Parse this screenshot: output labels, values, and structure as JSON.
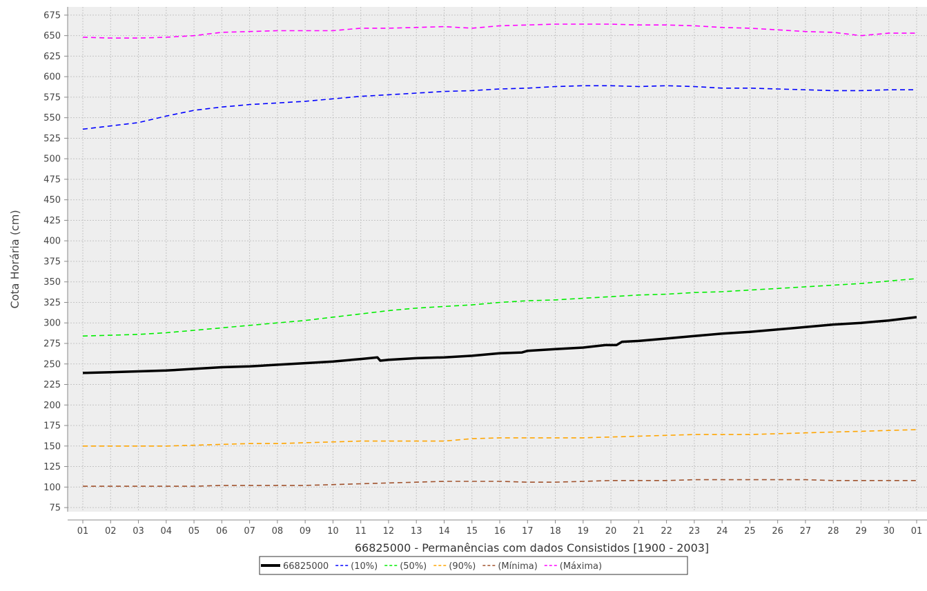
{
  "chart_data": {
    "type": "line",
    "title": "",
    "xlabel": "66825000 - Permanências com dados Consistidos [1900 - 2003]",
    "ylabel": "Cota Horária (cm)",
    "ylim": [
      70,
      685
    ],
    "y_ticks": [
      75,
      100,
      125,
      150,
      175,
      200,
      225,
      250,
      275,
      300,
      325,
      350,
      375,
      400,
      425,
      450,
      475,
      500,
      525,
      550,
      575,
      600,
      625,
      650,
      675
    ],
    "x_ticks": [
      "01",
      "02",
      "03",
      "04",
      "05",
      "06",
      "07",
      "08",
      "09",
      "10",
      "11",
      "12",
      "13",
      "14",
      "15",
      "16",
      "17",
      "18",
      "19",
      "20",
      "21",
      "22",
      "23",
      "24",
      "25",
      "26",
      "27",
      "28",
      "29",
      "30",
      "01"
    ],
    "x_start_index": 1,
    "grid": true,
    "legend_position": "bottom",
    "series": [
      {
        "name": "66825000",
        "color": "#000000",
        "style": "solid",
        "x": [
          1,
          2,
          3,
          4,
          5,
          6,
          7,
          8,
          9,
          10,
          11,
          11.6,
          11.7,
          12,
          13,
          14,
          15,
          16,
          16.8,
          17,
          18,
          19,
          19.8,
          20.2,
          20.4,
          21,
          22,
          23,
          24,
          25,
          26,
          27,
          28,
          29,
          30,
          31
        ],
        "values": [
          239,
          240,
          241,
          242,
          244,
          246,
          247,
          249,
          251,
          253,
          256,
          258,
          254,
          255,
          257,
          258,
          260,
          263,
          264,
          266,
          268,
          270,
          273,
          273,
          277,
          278,
          281,
          284,
          287,
          289,
          292,
          295,
          298,
          300,
          303,
          307
        ]
      },
      {
        "name": "(10%)",
        "color": "#0000ff",
        "style": "dashed",
        "x": [
          1,
          2,
          3,
          4,
          5,
          6,
          7,
          8,
          9,
          10,
          11,
          12,
          13,
          14,
          15,
          16,
          17,
          18,
          19,
          20,
          21,
          22,
          23,
          24,
          25,
          26,
          27,
          28,
          29,
          30,
          31
        ],
        "values": [
          536,
          540,
          544,
          552,
          559,
          563,
          566,
          568,
          570,
          573,
          576,
          578,
          580,
          582,
          583,
          585,
          586,
          588,
          589,
          589,
          588,
          589,
          588,
          586,
          586,
          585,
          584,
          583,
          583,
          584,
          584
        ]
      },
      {
        "name": "(50%)",
        "color": "#00ee00",
        "style": "dashed",
        "x": [
          1,
          2,
          3,
          4,
          5,
          6,
          7,
          8,
          9,
          10,
          11,
          12,
          13,
          14,
          15,
          16,
          17,
          18,
          19,
          20,
          21,
          22,
          23,
          24,
          25,
          26,
          27,
          28,
          29,
          30,
          31
        ],
        "values": [
          284,
          285,
          286,
          288,
          291,
          294,
          297,
          300,
          303,
          307,
          311,
          315,
          318,
          320,
          322,
          325,
          327,
          328,
          330,
          332,
          334,
          335,
          337,
          338,
          340,
          342,
          344,
          346,
          348,
          351,
          354
        ]
      },
      {
        "name": "(90%)",
        "color": "#ffa500",
        "style": "dashed",
        "x": [
          1,
          2,
          3,
          4,
          5,
          6,
          7,
          8,
          9,
          10,
          11,
          12,
          13,
          14,
          15,
          16,
          17,
          18,
          19,
          20,
          21,
          22,
          23,
          24,
          25,
          26,
          27,
          28,
          29,
          30,
          31
        ],
        "values": [
          150,
          150,
          150,
          150,
          151,
          152,
          153,
          153,
          154,
          155,
          156,
          156,
          156,
          156,
          159,
          160,
          160,
          160,
          160,
          161,
          162,
          163,
          164,
          164,
          164,
          165,
          166,
          167,
          168,
          169,
          170
        ]
      },
      {
        "name": "(Mínima)",
        "color": "#a0522d",
        "style": "dashed",
        "x": [
          1,
          2,
          3,
          4,
          5,
          6,
          7,
          8,
          9,
          10,
          11,
          12,
          13,
          14,
          15,
          16,
          17,
          18,
          19,
          20,
          21,
          22,
          23,
          24,
          25,
          26,
          27,
          28,
          29,
          30,
          31
        ],
        "values": [
          101,
          101,
          101,
          101,
          101,
          102,
          102,
          102,
          102,
          103,
          104,
          105,
          106,
          107,
          107,
          107,
          106,
          106,
          107,
          108,
          108,
          108,
          109,
          109,
          109,
          109,
          109,
          108,
          108,
          108,
          108
        ]
      },
      {
        "name": "(Máxima)",
        "color": "#ff00ff",
        "style": "dashed",
        "x": [
          1,
          2,
          3,
          4,
          5,
          6,
          7,
          8,
          9,
          10,
          11,
          12,
          13,
          14,
          15,
          16,
          17,
          18,
          19,
          20,
          21,
          22,
          23,
          24,
          25,
          26,
          27,
          28,
          29,
          30,
          31
        ],
        "values": [
          648,
          647,
          647,
          648,
          650,
          654,
          655,
          656,
          656,
          656,
          659,
          659,
          660,
          661,
          659,
          662,
          663,
          664,
          664,
          664,
          663,
          663,
          662,
          660,
          659,
          657,
          655,
          654,
          650,
          653,
          653
        ]
      }
    ]
  }
}
